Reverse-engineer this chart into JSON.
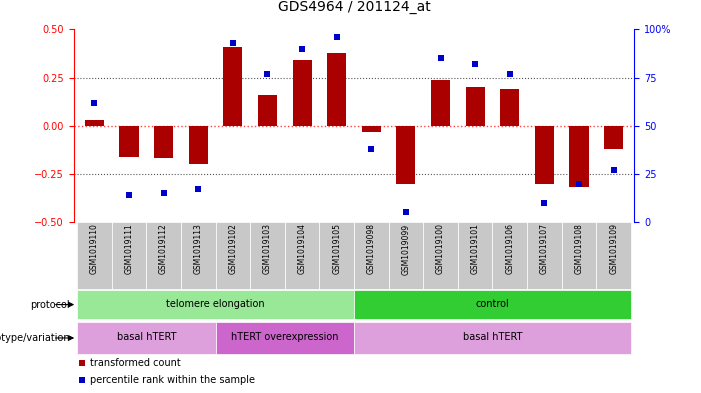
{
  "title": "GDS4964 / 201124_at",
  "samples": [
    "GSM1019110",
    "GSM1019111",
    "GSM1019112",
    "GSM1019113",
    "GSM1019102",
    "GSM1019103",
    "GSM1019104",
    "GSM1019105",
    "GSM1019098",
    "GSM1019099",
    "GSM1019100",
    "GSM1019101",
    "GSM1019106",
    "GSM1019107",
    "GSM1019108",
    "GSM1019109"
  ],
  "transformed_count": [
    0.03,
    -0.16,
    -0.17,
    -0.2,
    0.41,
    0.16,
    0.34,
    0.38,
    -0.03,
    -0.3,
    0.24,
    0.2,
    0.19,
    -0.3,
    -0.32,
    -0.12
  ],
  "percentile_rank": [
    62,
    14,
    15,
    17,
    93,
    77,
    90,
    96,
    38,
    5,
    85,
    82,
    77,
    10,
    20,
    27
  ],
  "ylim_left": [
    -0.5,
    0.5
  ],
  "ylim_right": [
    0,
    100
  ],
  "yticks_left": [
    -0.5,
    -0.25,
    0.0,
    0.25,
    0.5
  ],
  "yticks_right": [
    0,
    25,
    50,
    75,
    100
  ],
  "protocol_groups": [
    {
      "label": "telomere elongation",
      "start": 0,
      "end": 8,
      "color": "#98E898"
    },
    {
      "label": "control",
      "start": 8,
      "end": 16,
      "color": "#32CD32"
    }
  ],
  "genotype_groups": [
    {
      "label": "basal hTERT",
      "start": 0,
      "end": 4,
      "color": "#DDA0DD"
    },
    {
      "label": "hTERT overexpression",
      "start": 4,
      "end": 8,
      "color": "#CC66CC"
    },
    {
      "label": "basal hTERT",
      "start": 8,
      "end": 16,
      "color": "#DDA0DD"
    }
  ],
  "bar_color": "#AA0000",
  "dot_color": "#0000CC",
  "hline_color": "#FF4444",
  "dotted_line_color": "#555555",
  "bg_color": "#FFFFFF",
  "xlabel_bg": "#C8C8C8",
  "title_fontsize": 10,
  "axis_fontsize": 7,
  "label_fontsize": 7
}
